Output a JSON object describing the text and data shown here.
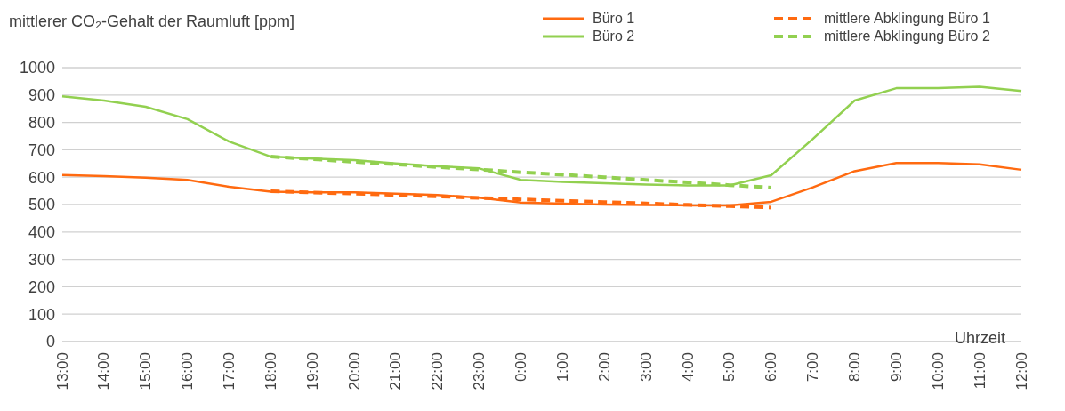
{
  "chart_data": {
    "type": "line",
    "ylabel": "mittlerer CO₂-Gehalt der Raumluft [ppm]",
    "xlabel": "Uhrzeit",
    "categories": [
      "13:00",
      "14:00",
      "15:00",
      "16:00",
      "17:00",
      "18:00",
      "19:00",
      "20:00",
      "21:00",
      "22:00",
      "23:00",
      "0:00",
      "1:00",
      "2:00",
      "3:00",
      "4:00",
      "5:00",
      "6:00",
      "7:00",
      "8:00",
      "9:00",
      "10:00",
      "11:00",
      "12:00"
    ],
    "ylim": [
      0,
      1000
    ],
    "yticks": [
      0,
      100,
      200,
      300,
      400,
      500,
      600,
      700,
      800,
      900,
      1000
    ],
    "grid": "y",
    "legend": "top right",
    "marker": "none",
    "series": [
      {
        "name": "Büro 1",
        "color": "#ff6a10",
        "line_style": "solid",
        "values": [
          608,
          604,
          598,
          590,
          565,
          547,
          545,
          545,
          540,
          535,
          525,
          507,
          503,
          500,
          498,
          497,
          497,
          510,
          563,
          622,
          652,
          652,
          647,
          627
        ]
      },
      {
        "name": "Büro 2",
        "color": "#92d050",
        "line_style": "solid",
        "values": [
          895,
          880,
          857,
          812,
          730,
          675,
          668,
          662,
          650,
          640,
          632,
          590,
          583,
          578,
          573,
          570,
          570,
          607,
          740,
          880,
          925,
          925,
          930,
          915
        ]
      },
      {
        "name": "mittlere Abklingung Büro 1",
        "color": "#ff6a10",
        "line_style": "dashed",
        "values": [
          null,
          null,
          null,
          null,
          null,
          549,
          544,
          540,
          535,
          530,
          524,
          519,
          514,
          509,
          504,
          499,
          494,
          489,
          null,
          null,
          null,
          null,
          null,
          null
        ]
      },
      {
        "name": "mittlere Abklingung Büro 2",
        "color": "#92d050",
        "line_style": "dashed",
        "values": [
          null,
          null,
          null,
          null,
          null,
          675,
          666,
          656,
          647,
          637,
          628,
          618,
          609,
          600,
          590,
          581,
          571,
          562,
          null,
          null,
          null,
          null,
          null,
          null
        ]
      }
    ]
  }
}
